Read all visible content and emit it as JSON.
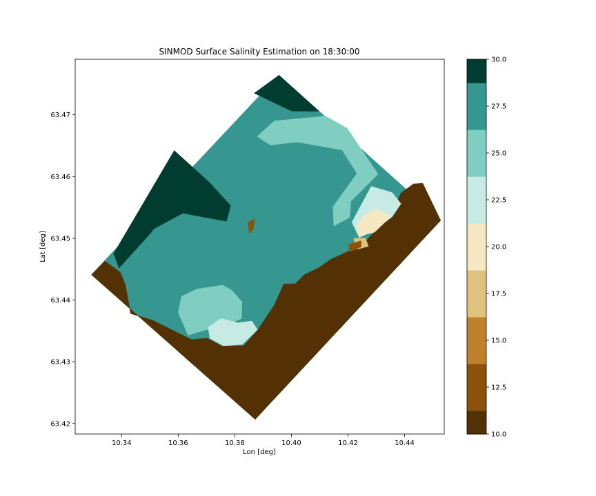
{
  "chart_data": {
    "type": "heatmap",
    "title": "SINMOD Surface Salinity Estimation on 18:30:00",
    "xlabel": "Lon [deg]",
    "ylabel": "Lat [deg]",
    "xlim": [
      10.3236,
      10.454
    ],
    "ylim": [
      63.4183,
      63.479
    ],
    "x_ticks": [
      "10.34",
      "10.36",
      "10.38",
      "10.40",
      "10.42",
      "10.44"
    ],
    "x_tick_values": [
      10.34,
      10.36,
      10.38,
      10.4,
      10.42,
      10.44
    ],
    "y_ticks": [
      "63.42",
      "63.43",
      "63.44",
      "63.45",
      "63.46",
      "63.47"
    ],
    "y_tick_values": [
      63.42,
      63.43,
      63.44,
      63.45,
      63.46,
      63.47
    ],
    "grid": false,
    "colorbar": {
      "range": [
        10.0,
        30.0
      ],
      "tick_labels": [
        "10.0",
        "12.5",
        "15.0",
        "17.5",
        "20.0",
        "22.5",
        "25.0",
        "27.5",
        "30.0"
      ],
      "tick_values": [
        10.0,
        12.5,
        15.0,
        17.5,
        20.0,
        22.5,
        25.0,
        27.5,
        30.0
      ],
      "levels": [
        {
          "from": 10.0,
          "to": 11.25,
          "color": "#543005"
        },
        {
          "from": 11.25,
          "to": 13.75,
          "color": "#8c510a"
        },
        {
          "from": 13.75,
          "to": 16.25,
          "color": "#bf812d"
        },
        {
          "from": 16.25,
          "to": 18.75,
          "color": "#dfc27d"
        },
        {
          "from": 18.75,
          "to": 21.25,
          "color": "#f6e8c3"
        },
        {
          "from": 21.25,
          "to": 23.75,
          "color": "#c7eae5"
        },
        {
          "from": 23.75,
          "to": 26.25,
          "color": "#80cdc1"
        },
        {
          "from": 26.25,
          "to": 28.75,
          "color": "#35978f"
        },
        {
          "from": 28.75,
          "to": 30.0,
          "color": "#003c30"
        }
      ]
    },
    "domain_corners": [
      {
        "lon": 10.3294,
        "lat": 63.4441
      },
      {
        "lon": 10.3956,
        "lat": 63.4764
      },
      {
        "lon": 10.4527,
        "lat": 63.4529
      },
      {
        "lon": 10.3872,
        "lat": 63.4207
      }
    ],
    "regions": [
      {
        "salinity": 10.0,
        "points": [
          [
            10.3294,
            63.4441
          ],
          [
            10.3341,
            63.4463
          ],
          [
            10.3395,
            63.4445
          ],
          [
            10.3413,
            63.4425
          ],
          [
            10.3432,
            63.4378
          ],
          [
            10.3511,
            63.4367
          ],
          [
            10.3646,
            63.4336
          ],
          [
            10.3703,
            63.4338
          ],
          [
            10.3755,
            63.4325
          ],
          [
            10.3832,
            63.4326
          ],
          [
            10.3882,
            63.4352
          ],
          [
            10.394,
            63.4392
          ],
          [
            10.3973,
            63.4426
          ],
          [
            10.4013,
            63.4426
          ],
          [
            10.4046,
            63.4441
          ],
          [
            10.4096,
            63.4452
          ],
          [
            10.414,
            63.4466
          ],
          [
            10.4197,
            63.4478
          ],
          [
            10.4253,
            63.4491
          ],
          [
            10.4293,
            63.451
          ],
          [
            10.4321,
            63.4526
          ],
          [
            10.4355,
            63.454
          ],
          [
            10.4387,
            63.4573
          ],
          [
            10.4431,
            63.4588
          ],
          [
            10.4464,
            63.4589
          ],
          [
            10.4527,
            63.4529
          ],
          [
            10.3872,
            63.4207
          ]
        ]
      },
      {
        "salinity": 30.0,
        "points": [
          [
            10.3372,
            63.4475
          ],
          [
            10.3586,
            63.4642
          ],
          [
            10.3711,
            63.459
          ],
          [
            10.3785,
            63.4553
          ],
          [
            10.377,
            63.4527
          ],
          [
            10.3616,
            63.454
          ],
          [
            10.3515,
            63.4515
          ],
          [
            10.3391,
            63.4452
          ]
        ]
      },
      {
        "salinity": 30.0,
        "points": [
          [
            10.4097,
            63.4706
          ],
          [
            10.3956,
            63.4764
          ],
          [
            10.3869,
            63.4735
          ],
          [
            10.4002,
            63.4706
          ]
        ]
      },
      {
        "salinity": 25.0,
        "points": [
          [
            10.3879,
            63.4665
          ],
          [
            10.394,
            63.469
          ],
          [
            10.412,
            63.4698
          ],
          [
            10.4197,
            63.4678
          ],
          [
            10.4306,
            63.4604
          ],
          [
            10.421,
            63.456
          ],
          [
            10.4206,
            63.4534
          ],
          [
            10.415,
            63.452
          ],
          [
            10.4147,
            63.4551
          ],
          [
            10.4232,
            63.4605
          ],
          [
            10.4179,
            63.4643
          ],
          [
            10.402,
            63.4656
          ],
          [
            10.3926,
            63.4651
          ]
        ]
      },
      {
        "salinity": 25.0,
        "points": [
          [
            10.36,
            63.438
          ],
          [
            10.3612,
            63.4406
          ],
          [
            10.3668,
            63.4418
          ],
          [
            10.3757,
            63.4424
          ],
          [
            10.3789,
            63.4416
          ],
          [
            10.3825,
            63.4397
          ],
          [
            10.3824,
            63.437
          ],
          [
            10.3754,
            63.4356
          ],
          [
            10.3693,
            63.4351
          ],
          [
            10.3635,
            63.4343
          ]
        ]
      },
      {
        "salinity": 22.5,
        "points": [
          [
            10.4214,
            63.4526
          ],
          [
            10.4282,
            63.4584
          ],
          [
            10.4356,
            63.4574
          ],
          [
            10.4387,
            63.4556
          ],
          [
            10.4356,
            63.4535
          ],
          [
            10.43,
            63.4515
          ],
          [
            10.424,
            63.4501
          ]
        ]
      },
      {
        "salinity": 22.5,
        "points": [
          [
            10.3706,
            63.4356
          ],
          [
            10.3752,
            63.437
          ],
          [
            10.381,
            63.4363
          ],
          [
            10.386,
            63.4366
          ],
          [
            10.388,
            63.4352
          ],
          [
            10.3826,
            63.4328
          ],
          [
            10.376,
            63.4326
          ],
          [
            10.3712,
            63.4338
          ]
        ]
      },
      {
        "salinity": 20.0,
        "points": [
          [
            10.424,
            63.4504
          ],
          [
            10.4294,
            63.451
          ],
          [
            10.433,
            63.4526
          ],
          [
            10.4352,
            63.4536
          ],
          [
            10.43,
            63.4548
          ],
          [
            10.426,
            63.4538
          ],
          [
            10.423,
            63.452
          ]
        ]
      },
      {
        "salinity": 17.5,
        "points": [
          [
            10.422,
            63.45
          ],
          [
            10.4262,
            63.45
          ],
          [
            10.4272,
            63.4487
          ],
          [
            10.423,
            63.4482
          ]
        ]
      },
      {
        "salinity": 12.5,
        "points": [
          [
            10.4206,
            63.4478
          ],
          [
            10.4246,
            63.4486
          ],
          [
            10.4246,
            63.4496
          ],
          [
            10.4202,
            63.449
          ]
        ]
      },
      {
        "salinity": 27.5,
        "points": [
          [
            10.34,
            63.4445
          ],
          [
            10.3515,
            63.4515
          ],
          [
            10.3616,
            63.454
          ],
          [
            10.377,
            63.4527
          ],
          [
            10.376,
            63.452
          ],
          [
            10.366,
            63.4525
          ],
          [
            10.347,
            63.447
          ],
          [
            10.3423,
            63.4427
          ]
        ]
      },
      {
        "salinity": 12.5,
        "points": [
          [
            10.3846,
            63.4525
          ],
          [
            10.387,
            63.4532
          ],
          [
            10.3866,
            63.4516
          ],
          [
            10.3852,
            63.4508
          ]
        ]
      }
    ]
  }
}
